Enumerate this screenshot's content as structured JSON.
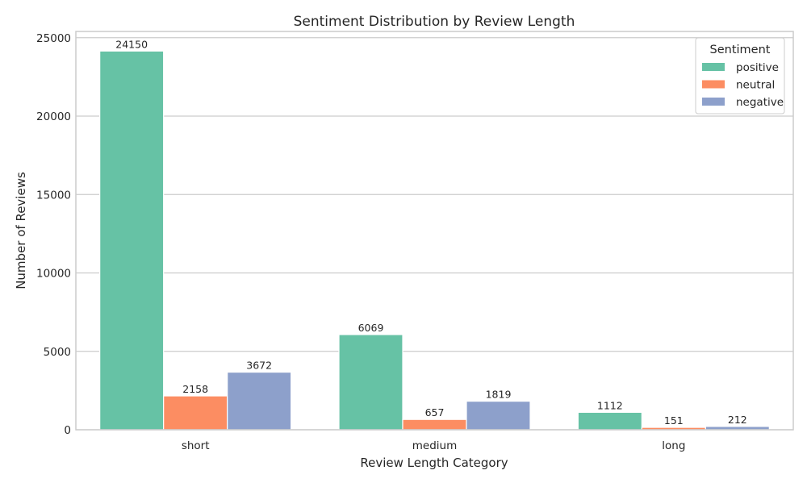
{
  "chart_data": {
    "type": "bar",
    "title": "Sentiment Distribution by Review Length",
    "xlabel": "Review Length Category",
    "ylabel": "Number of Reviews",
    "categories": [
      "short",
      "medium",
      "long"
    ],
    "series": [
      {
        "name": "positive",
        "color": "#66c2a5",
        "values": [
          24150,
          6069,
          1112
        ]
      },
      {
        "name": "neutral",
        "color": "#fc8d62",
        "values": [
          2158,
          657,
          151
        ]
      },
      {
        "name": "negative",
        "color": "#8da0cb",
        "values": [
          3672,
          1819,
          212
        ]
      }
    ],
    "ylim": [
      0,
      25400
    ],
    "yticks": [
      0,
      5000,
      10000,
      15000,
      20000,
      25000
    ],
    "grid": "horizontal",
    "legend": {
      "title": "Sentiment",
      "placement": "top-right"
    }
  }
}
